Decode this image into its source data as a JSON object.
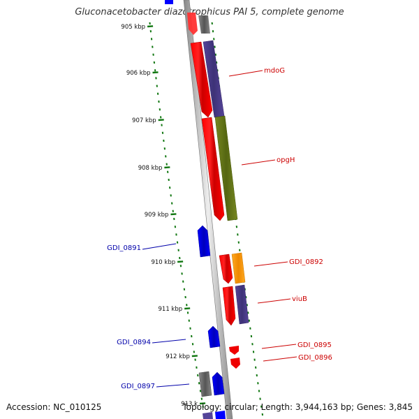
{
  "title": "Gluconacetobacter diazotrophicus PAI 5, complete genome",
  "footer": {
    "accession": "Accession: NC_010125",
    "summary": "Topology: circular; Length: 3,944,163 bp; Genes: 3,845"
  },
  "ruler": {
    "ticks": [
      {
        "label": "905 kbp"
      },
      {
        "label": "906 kbp"
      },
      {
        "label": "907 kbp"
      },
      {
        "label": "908 kbp"
      },
      {
        "label": "909 kbp"
      },
      {
        "label": "910 kbp"
      },
      {
        "label": "911 kbp"
      },
      {
        "label": "912 kbp"
      },
      {
        "label": "913 k"
      }
    ]
  },
  "colors": {
    "label_red": "#cc0000",
    "label_blue": "#0000aa",
    "gene_red": "#ff0000",
    "gene_blue": "#0000ff",
    "gene_purple": "#554499",
    "gene_olive": "#667722",
    "gene_orange": "#ff9900",
    "gene_gray": "#777777",
    "ruler_green": "#117711"
  },
  "labels": [
    {
      "text": "mdoG",
      "color": "#cc0000"
    },
    {
      "text": "opgH",
      "color": "#cc0000"
    },
    {
      "text": "GDI_0891",
      "color": "#0000aa"
    },
    {
      "text": "GDI_0892",
      "color": "#cc0000"
    },
    {
      "text": "viuB",
      "color": "#cc0000"
    },
    {
      "text": "GDI_0894",
      "color": "#0000aa"
    },
    {
      "text": "GDI_0895",
      "color": "#cc0000"
    },
    {
      "text": "GDI_0896",
      "color": "#cc0000"
    },
    {
      "text": "GDI_0897",
      "color": "#0000aa"
    }
  ]
}
